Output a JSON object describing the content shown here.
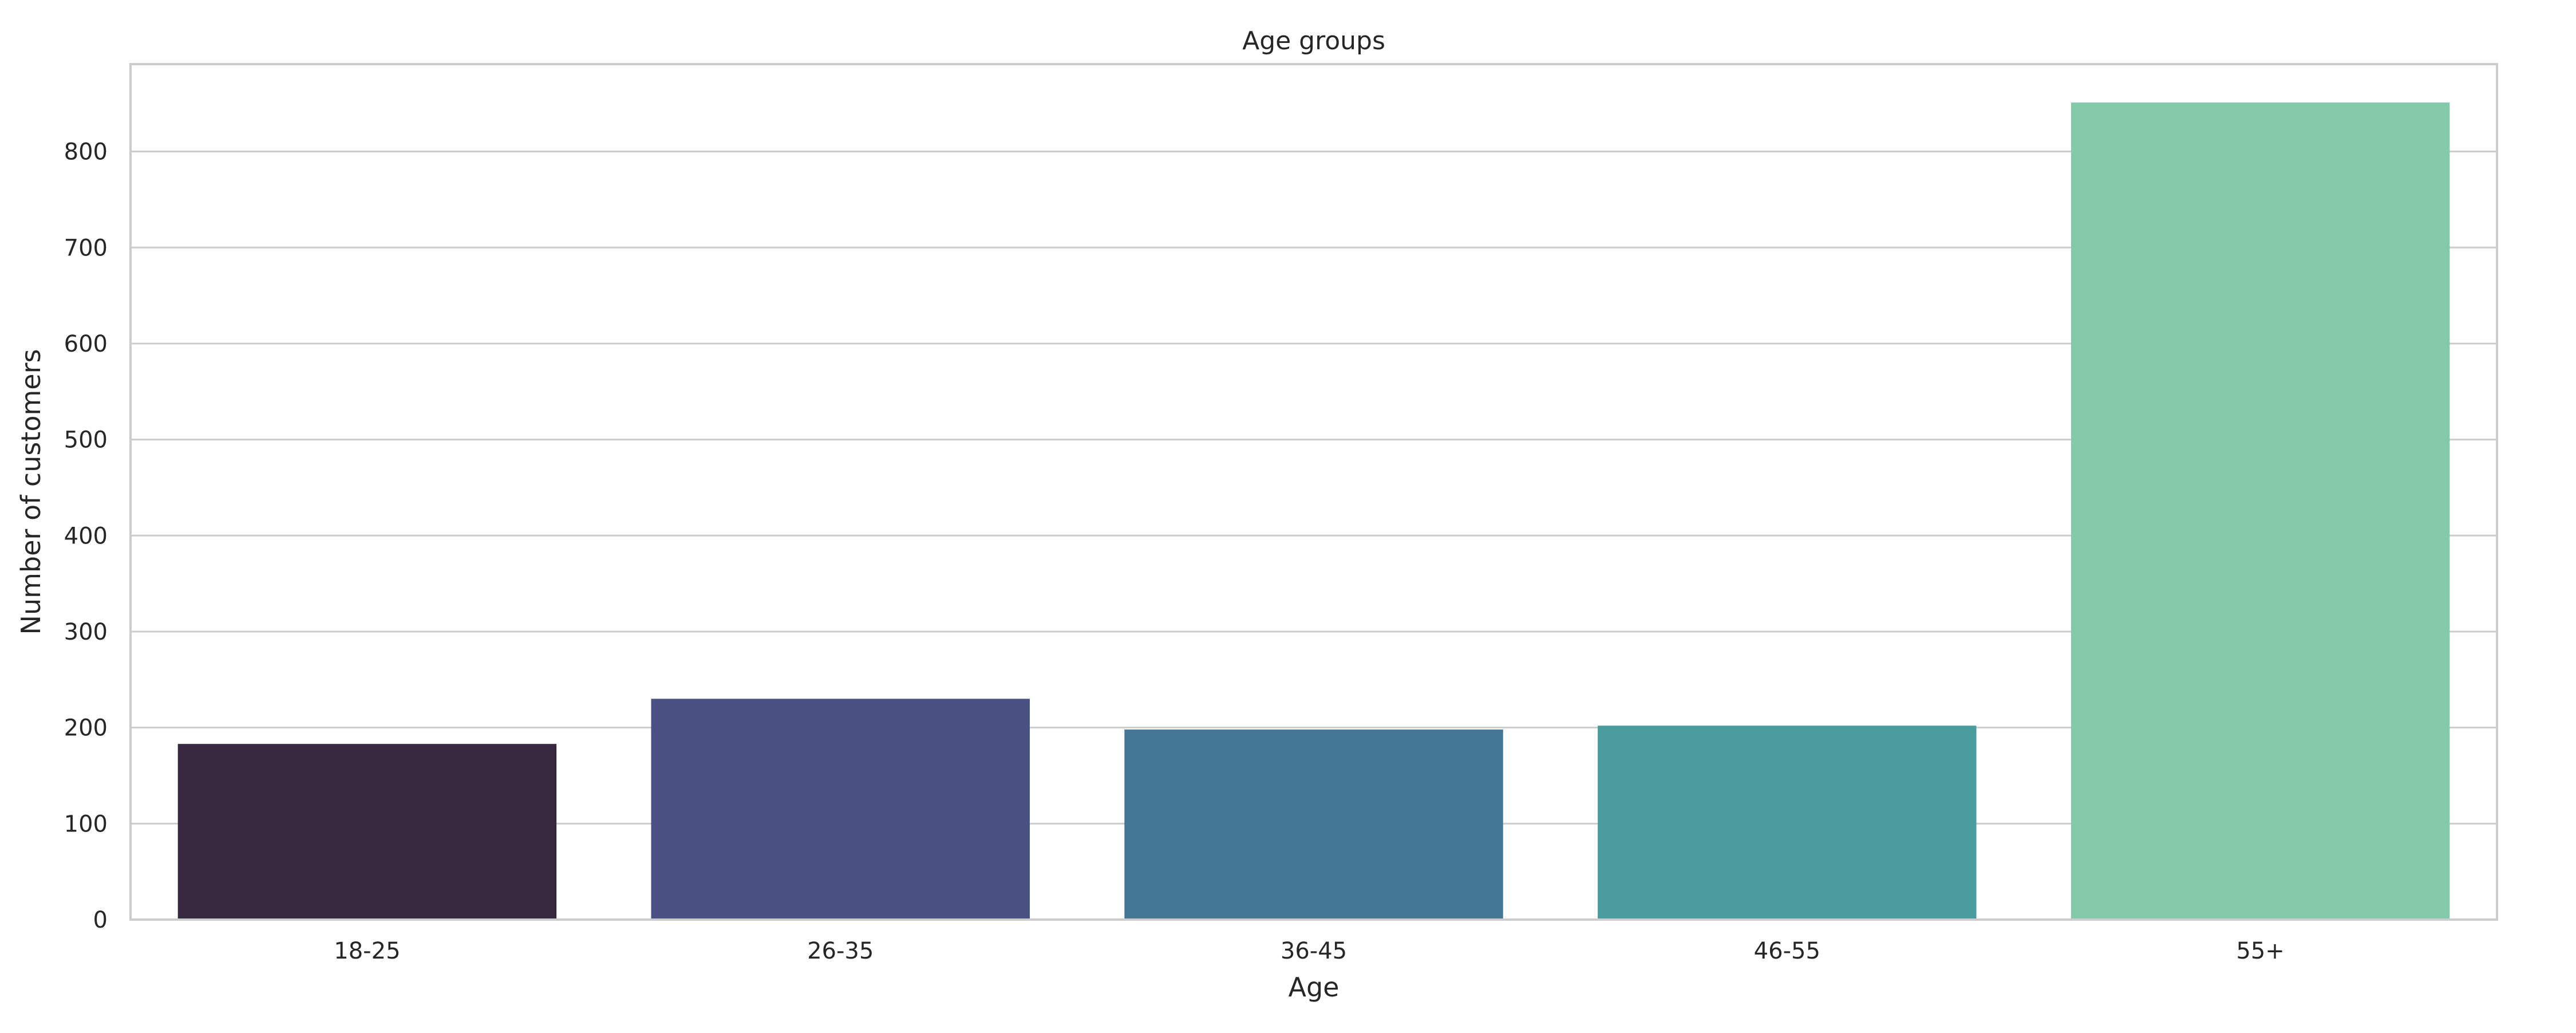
{
  "chart_data": {
    "type": "bar",
    "title": "Age groups",
    "xlabel": "Age",
    "ylabel": "Number of customers",
    "categories": [
      "18-25",
      "26-35",
      "36-45",
      "46-55",
      "55+"
    ],
    "values": [
      183,
      230,
      198,
      202,
      851
    ],
    "colors": [
      "#35283f",
      "#4a5185",
      "#447795",
      "#499c9e",
      "#84c9aa"
    ],
    "ylim": [
      0,
      891
    ],
    "yticks": [
      0,
      100,
      200,
      300,
      400,
      500,
      600,
      700,
      800
    ],
    "ytick_labels": [
      "0",
      "100",
      "200",
      "300",
      "400",
      "500",
      "600",
      "700",
      "800"
    ],
    "grid": "horizontal",
    "legend": "none"
  }
}
